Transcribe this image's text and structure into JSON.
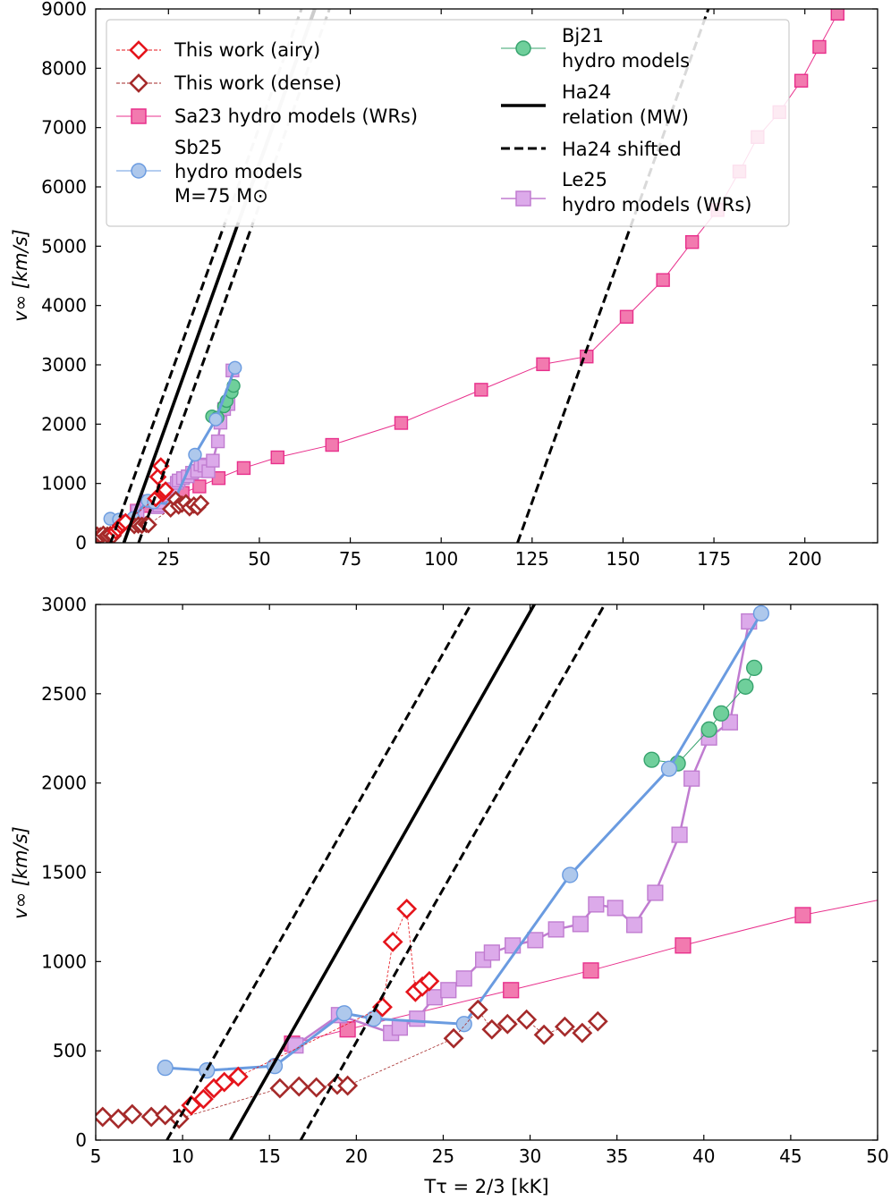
{
  "chart_data": [
    {
      "type": "scatter",
      "panel": "top",
      "xlim": [
        5,
        220
      ],
      "ylim": [
        0,
        9000
      ],
      "xticks": [
        25,
        50,
        75,
        100,
        125,
        150,
        175,
        200
      ],
      "yticks": [
        0,
        1000,
        2000,
        3000,
        4000,
        5000,
        6000,
        7000,
        8000,
        9000
      ],
      "ylabel": "v∞ [km/s]",
      "xlabel": "",
      "legend_placement": "top-left",
      "legend": [
        {
          "key": "airy",
          "label": "This work (airy)"
        },
        {
          "key": "dense",
          "label": "This work (dense)"
        },
        {
          "key": "sa23",
          "label": "Sa23 hydro models (WRs)"
        },
        {
          "key": "sb25",
          "lines": [
            "Sb25",
            "hydro models",
            "M=75 M⊙"
          ]
        },
        {
          "key": "bj21",
          "lines": [
            "Bj21",
            "hydro models"
          ]
        },
        {
          "key": "ha24",
          "lines": [
            "Ha24",
            "relation (MW)"
          ]
        },
        {
          "key": "ha24s",
          "label": "Ha24 shifted"
        },
        {
          "key": "le25",
          "lines": [
            "Le25",
            "hydro models (WRs)"
          ]
        }
      ]
    },
    {
      "type": "scatter",
      "panel": "bottom",
      "xlim": [
        5,
        50
      ],
      "ylim": [
        0,
        3000
      ],
      "xticks": [
        5,
        10,
        15,
        20,
        25,
        30,
        35,
        40,
        45,
        50
      ],
      "yticks": [
        0,
        500,
        1000,
        1500,
        2000,
        2500,
        3000
      ],
      "ylabel": "v∞ [km/s]",
      "xlabel": "Tτ = 2/3 [kK]"
    }
  ],
  "series": {
    "sa23": {
      "name": "Sa23 hydro models (WRs)",
      "color": "#e8308c",
      "fill": "#f27aaf",
      "x": [
        16.3,
        19.5,
        28.9,
        33.5,
        38.8,
        45.7,
        55,
        70,
        89,
        111,
        128,
        140,
        151,
        161,
        169,
        176,
        182,
        187,
        193,
        199,
        204,
        209
      ],
      "y": [
        540,
        620,
        840,
        950,
        1090,
        1260,
        1440,
        1650,
        2020,
        2580,
        3010,
        3140,
        3810,
        4430,
        5070,
        5610,
        6260,
        6840,
        7260,
        7790,
        8360,
        8920
      ]
    },
    "sb25": {
      "name": "Sb25 hydro models M=75 M⊙",
      "color": "#6a9be0",
      "fill": "#aec8ec",
      "x": [
        9.0,
        11.4,
        15.3,
        19.3,
        21.0,
        26.2,
        32.3,
        38.0,
        43.3
      ],
      "y": [
        405,
        390,
        415,
        710,
        680,
        650,
        1485,
        2080,
        2950
      ]
    },
    "bj21": {
      "name": "Bj21 hydro models",
      "color": "#37a36e",
      "fill": "#6fcf9b",
      "x": [
        37.0,
        38.5,
        40.3,
        41.0,
        42.4,
        42.9
      ],
      "y": [
        2130,
        2110,
        2300,
        2390,
        2540,
        2645
      ]
    },
    "le25": {
      "name": "Le25 hydro models (WRs)",
      "color": "#c07cd0",
      "fill": "#dcaaea",
      "x": [
        16.5,
        19.0,
        22.0,
        22.5,
        23.5,
        24.5,
        25.3,
        26.2,
        27.3,
        27.8,
        29.0,
        30.3,
        31.5,
        32.9,
        33.8,
        34.9,
        36.0,
        37.2,
        38.6,
        39.3,
        40.3,
        41.5,
        42.6
      ],
      "y": [
        530,
        700,
        600,
        630,
        680,
        800,
        840,
        905,
        1010,
        1050,
        1090,
        1120,
        1180,
        1210,
        1320,
        1300,
        1205,
        1385,
        1710,
        2025,
        2255,
        2340,
        2905
      ]
    },
    "airy": {
      "name": "This work (airy)",
      "color": "#e5141b",
      "x": [
        10.5,
        11.2,
        11.8,
        12.4,
        13.2,
        21.5,
        22.1,
        22.9,
        23.4,
        23.8,
        24.2
      ],
      "y": [
        195,
        230,
        290,
        325,
        355,
        745,
        1110,
        1295,
        830,
        860,
        890
      ]
    },
    "dense": {
      "name": "This work (dense)",
      "color": "#a52a2a",
      "x": [
        5.4,
        6.3,
        7.1,
        8.2,
        9.0,
        9.8,
        15.6,
        16.7,
        17.7,
        18.9,
        19.5,
        25.6,
        27.0,
        27.8,
        28.7,
        29.8,
        30.8,
        32.0,
        33.0,
        33.9
      ],
      "y": [
        130,
        120,
        145,
        130,
        140,
        120,
        290,
        300,
        295,
        310,
        305,
        570,
        730,
        620,
        650,
        675,
        590,
        635,
        600,
        665
      ]
    },
    "ha24": {
      "name": "Ha24 relation (MW)",
      "slope": 171.5,
      "x0": 12.75
    },
    "ha24s": {
      "name": "Ha24 shifted",
      "slope": 171.5,
      "offsets": [
        9.1,
        16.8
      ],
      "x0_far": 121
    }
  }
}
